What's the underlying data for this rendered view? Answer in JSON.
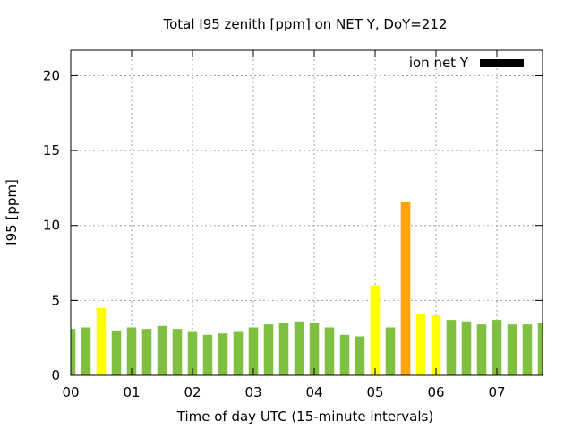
{
  "chart_data": {
    "type": "bar",
    "title": "Total I95 zenith [ppm] on NET Y, DoY=212",
    "xlabel": "Time of day UTC (15-minute intervals)",
    "ylabel": "I95 [ppm]",
    "ylim": [
      0,
      21.7
    ],
    "yticks": [
      0,
      5,
      10,
      15,
      20
    ],
    "ytick_labels": [
      "0",
      "5",
      "10",
      "15",
      "20"
    ],
    "xlim_hours": [
      0,
      7.75
    ],
    "xticks_hours": [
      0,
      1,
      2,
      3,
      4,
      5,
      6,
      7
    ],
    "xtick_labels": [
      "00",
      "01",
      "02",
      "03",
      "04",
      "05",
      "06",
      "07"
    ],
    "grid": true,
    "legend": {
      "label": "ion net Y",
      "position": "top-right",
      "color": "#000000"
    },
    "interval_minutes": 15,
    "x_hours": [
      0,
      0.25,
      0.5,
      0.75,
      1,
      1.25,
      1.5,
      1.75,
      2,
      2.25,
      2.5,
      2.75,
      3,
      3.25,
      3.5,
      3.75,
      4,
      4.25,
      4.5,
      4.75,
      5,
      5.25,
      5.5,
      5.75,
      6,
      6.25,
      6.5,
      6.75,
      7,
      7.25,
      7.5,
      7.75
    ],
    "values": [
      3.1,
      3.2,
      4.5,
      3.0,
      3.2,
      3.1,
      3.3,
      3.1,
      2.9,
      2.7,
      2.8,
      2.9,
      3.2,
      3.4,
      3.5,
      3.6,
      3.5,
      3.2,
      2.7,
      2.6,
      6.0,
      3.2,
      11.6,
      4.1,
      4.0,
      3.7,
      3.6,
      3.4,
      3.7,
      3.4,
      3.4,
      3.5
    ],
    "color_thresholds": [
      {
        "max": 4,
        "color": "#80c040"
      },
      {
        "max": 8,
        "color": "#ffff00"
      },
      {
        "max": 20,
        "color": "#ffa500"
      },
      {
        "max": 1000,
        "color": "#ff0000"
      }
    ]
  }
}
